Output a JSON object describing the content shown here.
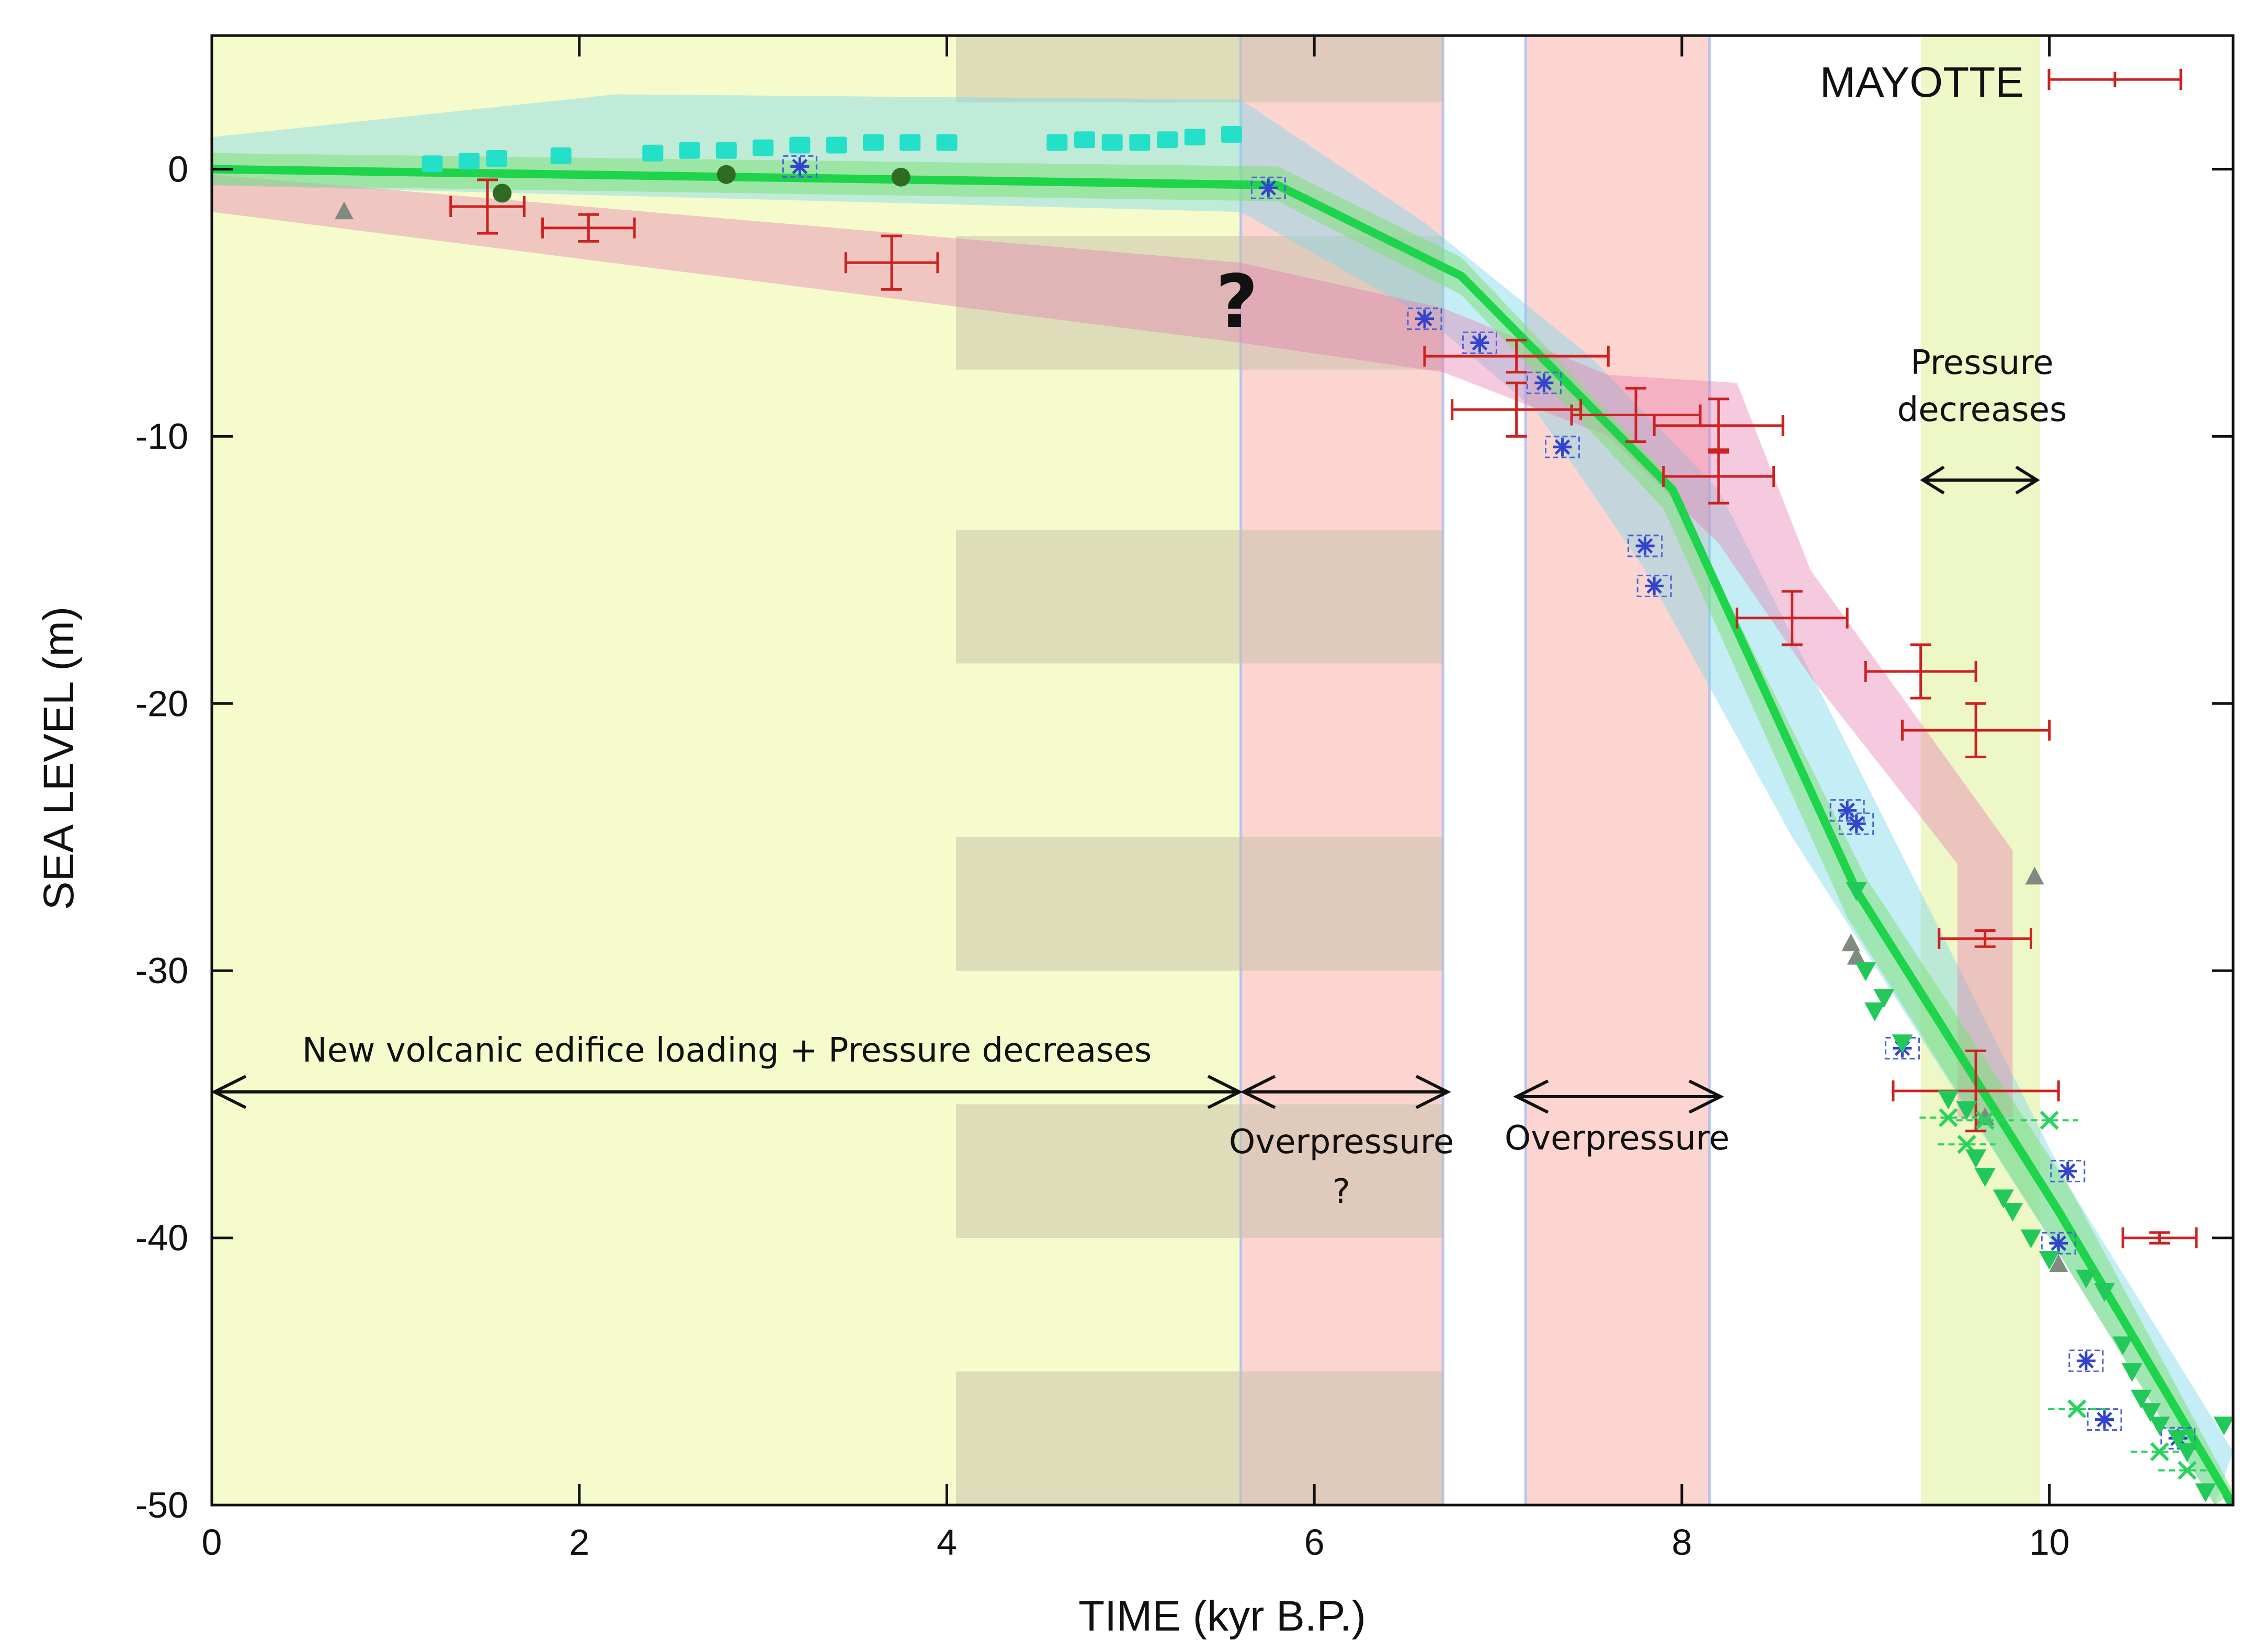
{
  "chart_data": {
    "type": "scatter",
    "xlabel": "TIME (kyr B.P.)",
    "ylabel": "SEA LEVEL (m)",
    "xlim": [
      0,
      11
    ],
    "ylim": [
      -50,
      5
    ],
    "xticks": [
      0,
      2,
      4,
      6,
      8,
      10
    ],
    "yticks": [
      0,
      -10,
      -20,
      -30,
      -40,
      -50
    ],
    "xtick_labels": [
      "0",
      "2",
      "4",
      "6",
      "8",
      "10"
    ],
    "ytick_labels": [
      "0",
      "-10",
      "-20",
      "-30",
      "-40",
      "-50"
    ],
    "legend": {
      "label": "MAYOTTE",
      "color": "#cc2222",
      "placement": "top-right"
    },
    "colors": {
      "volcanic_bg": "#f6fbcc",
      "overpressure": "#fdd5d0",
      "pressure_band": "#eef7c6",
      "gray_bands": "#c4bfa5",
      "green_curve": "#1ed44a",
      "cyan_points": "#25e0c8",
      "mayotte": "#cc2222",
      "asterisks": "#3344cc",
      "green_points": "#22c85a"
    },
    "regions": [
      {
        "name": "volcanic-loading",
        "x0": 0,
        "x1": 5.6
      },
      {
        "name": "overpressure-1",
        "x0": 5.6,
        "x1": 6.7
      },
      {
        "name": "overpressure-2",
        "x0": 7.15,
        "x1": 8.15
      },
      {
        "name": "pressure-decrease",
        "x0": 9.3,
        "x1": 9.95
      }
    ],
    "gray_bands_y": [
      [
        2.5,
        5
      ],
      [
        -7.5,
        -2.5
      ],
      [
        -18.5,
        -13.5
      ],
      [
        -30,
        -25
      ],
      [
        -40,
        -35
      ],
      [
        -50,
        -45
      ]
    ],
    "gray_bands_x": [
      4.05,
      6.7
    ],
    "envelopes": [
      {
        "name": "cyan-envelope",
        "upper": [
          [
            0,
            1.2
          ],
          [
            2.2,
            2.8
          ],
          [
            5.6,
            2.6
          ],
          [
            6.6,
            -2
          ],
          [
            7.5,
            -7
          ],
          [
            8.2,
            -12
          ],
          [
            10.1,
            -38
          ],
          [
            11,
            -48
          ]
        ],
        "lower": [
          [
            0,
            -0.6
          ],
          [
            5.6,
            -1.6
          ],
          [
            6.6,
            -5.5
          ],
          [
            7.2,
            -9
          ],
          [
            7.8,
            -15
          ],
          [
            8.6,
            -25
          ],
          [
            10,
            -40
          ],
          [
            10.9,
            -50
          ]
        ]
      },
      {
        "name": "pink-envelope",
        "upper": [
          [
            0,
            -0.2
          ],
          [
            5.6,
            -3.5
          ],
          [
            6.7,
            -5.2
          ],
          [
            7.6,
            -7.7
          ],
          [
            8.3,
            -8
          ],
          [
            8.7,
            -15
          ],
          [
            9.8,
            -25.5
          ],
          [
            9.8,
            -35.5
          ]
        ],
        "lower": [
          [
            0,
            -1.6
          ],
          [
            5.6,
            -6.5
          ],
          [
            6.7,
            -7.6
          ],
          [
            7.6,
            -10
          ],
          [
            8.2,
            -14
          ],
          [
            8.7,
            -19
          ],
          [
            9.5,
            -26
          ],
          [
            9.5,
            -35.5
          ]
        ]
      },
      {
        "name": "green-band",
        "upper": [
          [
            0,
            0.6
          ],
          [
            5.8,
            0.1
          ],
          [
            6.8,
            -3.3
          ],
          [
            7.9,
            -11.3
          ],
          [
            9.0,
            -26.5
          ],
          [
            10.1,
            -38
          ],
          [
            11,
            -49.5
          ]
        ],
        "lower": [
          [
            0,
            -0.6
          ],
          [
            5.8,
            -1.2
          ],
          [
            6.8,
            -4.7
          ],
          [
            7.9,
            -12.7
          ],
          [
            8.9,
            -28
          ],
          [
            10,
            -40
          ],
          [
            10.9,
            -50
          ]
        ]
      }
    ],
    "series": [
      {
        "name": "model-curve",
        "points": [
          [
            0,
            0
          ],
          [
            5.8,
            -0.6
          ],
          [
            6.8,
            -4
          ],
          [
            7.95,
            -12
          ],
          [
            8.95,
            -27
          ],
          [
            10.05,
            -39
          ],
          [
            11,
            -50
          ]
        ]
      },
      {
        "name": "cyan-markers",
        "points": [
          [
            1.2,
            0.2
          ],
          [
            1.4,
            0.3
          ],
          [
            1.55,
            0.4
          ],
          [
            1.9,
            0.5
          ],
          [
            2.4,
            0.6
          ],
          [
            2.6,
            0.7
          ],
          [
            2.8,
            0.7
          ],
          [
            3.0,
            0.8
          ],
          [
            3.2,
            0.9
          ],
          [
            3.4,
            0.9
          ],
          [
            3.6,
            1.0
          ],
          [
            3.8,
            1.0
          ],
          [
            4.0,
            1.0
          ],
          [
            4.6,
            1.0
          ],
          [
            4.75,
            1.1
          ],
          [
            4.9,
            1.0
          ],
          [
            5.05,
            1.0
          ],
          [
            5.2,
            1.1
          ],
          [
            5.35,
            1.2
          ],
          [
            5.55,
            1.3
          ]
        ]
      },
      {
        "name": "dark-circles",
        "points": [
          [
            1.58,
            -0.9
          ],
          [
            2.8,
            -0.2
          ],
          [
            3.75,
            -0.3
          ]
        ]
      },
      {
        "name": "gray-triangles",
        "points": [
          [
            0.72,
            -1.6
          ],
          [
            9.92,
            -26.5
          ],
          [
            8.92,
            -29
          ],
          [
            8.95,
            -29.5
          ],
          [
            9.65,
            -35.5
          ],
          [
            10.05,
            -41
          ]
        ]
      },
      {
        "name": "mayotte",
        "points": [
          {
            "x": 1.5,
            "y": -1.4,
            "xerr": 0.2,
            "yerr": 1.0
          },
          {
            "x": 2.05,
            "y": -2.2,
            "xerr": 0.25,
            "yerr": 0.5
          },
          {
            "x": 3.7,
            "y": -3.5,
            "xerr": 0.25,
            "yerr": 1.0
          },
          {
            "x": 7.1,
            "y": -7.0,
            "xerr": 0.5,
            "yerr": 0.6
          },
          {
            "x": 7.1,
            "y": -9.0,
            "xerr": 0.35,
            "yerr": 1.0
          },
          {
            "x": 7.75,
            "y": -9.2,
            "xerr": 0.35,
            "yerr": 1.0
          },
          {
            "x": 8.2,
            "y": -9.6,
            "xerr": 0.35,
            "yerr": 1.0
          },
          {
            "x": 8.2,
            "y": -11.5,
            "xerr": 0.3,
            "yerr": 1.0
          },
          {
            "x": 8.6,
            "y": -16.8,
            "xerr": 0.3,
            "yerr": 1.0
          },
          {
            "x": 9.3,
            "y": -18.8,
            "xerr": 0.3,
            "yerr": 1.0
          },
          {
            "x": 9.6,
            "y": -21.0,
            "xerr": 0.4,
            "yerr": 1.0
          },
          {
            "x": 9.65,
            "y": -28.8,
            "xerr": 0.25,
            "yerr": 0.3
          },
          {
            "x": 9.6,
            "y": -34.5,
            "xerr": 0.45,
            "yerr": 1.5
          },
          {
            "x": 10.6,
            "y": -40.0,
            "xerr": 0.2,
            "yerr": 0.2
          }
        ]
      },
      {
        "name": "blue-asterisks",
        "points": [
          [
            3.2,
            0.1
          ],
          [
            5.75,
            -0.7
          ],
          [
            6.6,
            -5.6
          ],
          [
            6.9,
            -6.5
          ],
          [
            7.25,
            -8.0
          ],
          [
            7.35,
            -10.4
          ],
          [
            7.8,
            -14.1
          ],
          [
            7.85,
            -15.6
          ],
          [
            8.9,
            -24.0
          ],
          [
            8.95,
            -24.5
          ],
          [
            9.2,
            -32.9
          ],
          [
            10.1,
            -37.5
          ],
          [
            10.05,
            -40.2
          ],
          [
            10.2,
            -44.6
          ],
          [
            10.3,
            -46.8
          ],
          [
            10.7,
            -47.5
          ]
        ]
      },
      {
        "name": "green-crosses",
        "points": [
          [
            9.45,
            -35.5
          ],
          [
            9.55,
            -36.5
          ],
          [
            9.65,
            -35.6
          ],
          [
            10.0,
            -35.6
          ],
          [
            10.15,
            -46.4
          ],
          [
            10.6,
            -48.0
          ],
          [
            10.75,
            -48.7
          ]
        ]
      },
      {
        "name": "green-triangles",
        "points": [
          [
            8.95,
            -27
          ],
          [
            9.0,
            -30
          ],
          [
            9.05,
            -31.5
          ],
          [
            9.1,
            -31
          ],
          [
            9.2,
            -32.7
          ],
          [
            9.45,
            -34.8
          ],
          [
            9.55,
            -35.2
          ],
          [
            9.6,
            -37
          ],
          [
            9.65,
            -37.7
          ],
          [
            9.75,
            -38.5
          ],
          [
            9.8,
            -39
          ],
          [
            9.9,
            -40
          ],
          [
            10.0,
            -40.8
          ],
          [
            10.2,
            -41.5
          ],
          [
            10.3,
            -42
          ],
          [
            10.4,
            -44
          ],
          [
            10.45,
            -45
          ],
          [
            10.5,
            -46
          ],
          [
            10.55,
            -46.5
          ],
          [
            10.6,
            -47
          ],
          [
            10.7,
            -47.5
          ],
          [
            10.75,
            -48
          ],
          [
            10.85,
            -49.5
          ],
          [
            10.95,
            -47
          ],
          [
            11.0,
            -50
          ]
        ]
      }
    ],
    "annotations": [
      {
        "id": "volcanic",
        "text": "New volcanic edifice loading + Pressure decreases"
      },
      {
        "id": "overpressure-1",
        "text": "Overpressure"
      },
      {
        "id": "overpressure-1-q",
        "text": "?"
      },
      {
        "id": "overpressure-2",
        "text": "Overpressure"
      },
      {
        "id": "pressure-1",
        "text": "Pressure"
      },
      {
        "id": "pressure-2",
        "text": "decreases"
      },
      {
        "id": "big-question",
        "text": "?"
      }
    ]
  }
}
